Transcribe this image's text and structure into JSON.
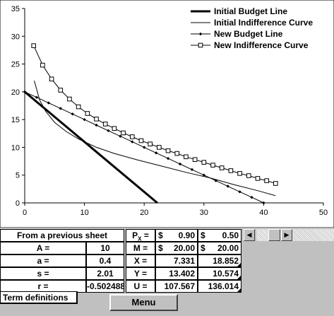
{
  "chart_data": {
    "type": "line",
    "title": "",
    "xlabel": "",
    "ylabel": "",
    "xlim": [
      0,
      50
    ],
    "ylim": [
      0,
      35
    ],
    "xticks": [
      0,
      10,
      20,
      30,
      40,
      50
    ],
    "yticks": [
      0,
      5,
      10,
      15,
      20,
      25,
      30,
      35
    ],
    "legend_position": "top-right",
    "grid": false,
    "series": [
      {
        "name": "Initial Budget Line",
        "style": "thick",
        "marker": "none",
        "color": "#000000",
        "x": [
          0,
          22.2
        ],
        "y": [
          20,
          0
        ]
      },
      {
        "name": "Initial Indifference Curve",
        "style": "thin",
        "marker": "none",
        "color": "#000000",
        "x": [
          1.6,
          2.5,
          3.5,
          5,
          7,
          9,
          12,
          15,
          19,
          23,
          27,
          31,
          35,
          39,
          42
        ],
        "y": [
          22,
          18.5,
          16.5,
          14.5,
          12.8,
          11.5,
          10,
          8.9,
          7.7,
          6.6,
          5.5,
          4.5,
          3.3,
          2.2,
          1.3
        ]
      },
      {
        "name": "New Budget Line",
        "style": "thin",
        "marker": "diamond",
        "color": "#000000",
        "x": [
          0,
          2,
          4,
          6,
          8,
          10,
          12,
          14,
          16,
          18,
          20,
          22,
          24,
          26,
          28,
          30,
          32,
          34,
          36,
          38,
          40
        ],
        "y": [
          20,
          19,
          18,
          17,
          16,
          15,
          14,
          13,
          12,
          11,
          10,
          9,
          8,
          7,
          6,
          5,
          4,
          3,
          2,
          1,
          0
        ]
      },
      {
        "name": "New Indifference Curve",
        "style": "thin",
        "marker": "square",
        "color": "#000000",
        "x": [
          1.5,
          3,
          4.5,
          6,
          7.5,
          9,
          10.5,
          12,
          13.5,
          15,
          16.5,
          18,
          19.5,
          21,
          22.5,
          24,
          25.5,
          27,
          28.5,
          30,
          31.5,
          33,
          34.5,
          36,
          37.5,
          39,
          40.5,
          42
        ],
        "y": [
          28.3,
          24.8,
          22.3,
          20.3,
          18.7,
          17.3,
          16.1,
          15.1,
          14.2,
          13.4,
          12.6,
          11.9,
          11.2,
          10.6,
          10,
          9.4,
          8.9,
          8.3,
          7.8,
          7.3,
          6.8,
          6.3,
          5.8,
          5.3,
          4.9,
          4.4,
          4,
          3.5
        ]
      }
    ]
  },
  "table": {
    "header_left": "From a previous sheet",
    "header_p_label": "P",
    "header_p_sub": "X",
    "header_p_eq": " =",
    "header_p1_cur": "$",
    "header_p1_val": "0.90",
    "header_p2_cur": "$",
    "header_p2_val": "0.50",
    "rows": [
      {
        "label": "A =",
        "value": "10",
        "key": "M =",
        "v1_cur": "$",
        "v1": "20.00",
        "v2_cur": "$",
        "v2": "20.00"
      },
      {
        "label": "a =",
        "value": "0.4",
        "key": "X =",
        "v1_cur": "",
        "v1": "7.331",
        "v2_cur": "",
        "v2": "18.852"
      },
      {
        "label": "s =",
        "value": "2.01",
        "key": "Y =",
        "v1_cur": "",
        "v1": "13.402",
        "v2_cur": "",
        "v2": "10.574"
      },
      {
        "label": "r =",
        "value": "-0.502488",
        "key": "U =",
        "v1_cur": "",
        "v1": "107.567",
        "v2_cur": "",
        "v2": "136.014"
      }
    ]
  },
  "scrollbar": {
    "left_arrow": "◀",
    "right_arrow": "▶"
  },
  "buttons": {
    "term_definitions": "Term definitions",
    "menu": "Menu"
  }
}
